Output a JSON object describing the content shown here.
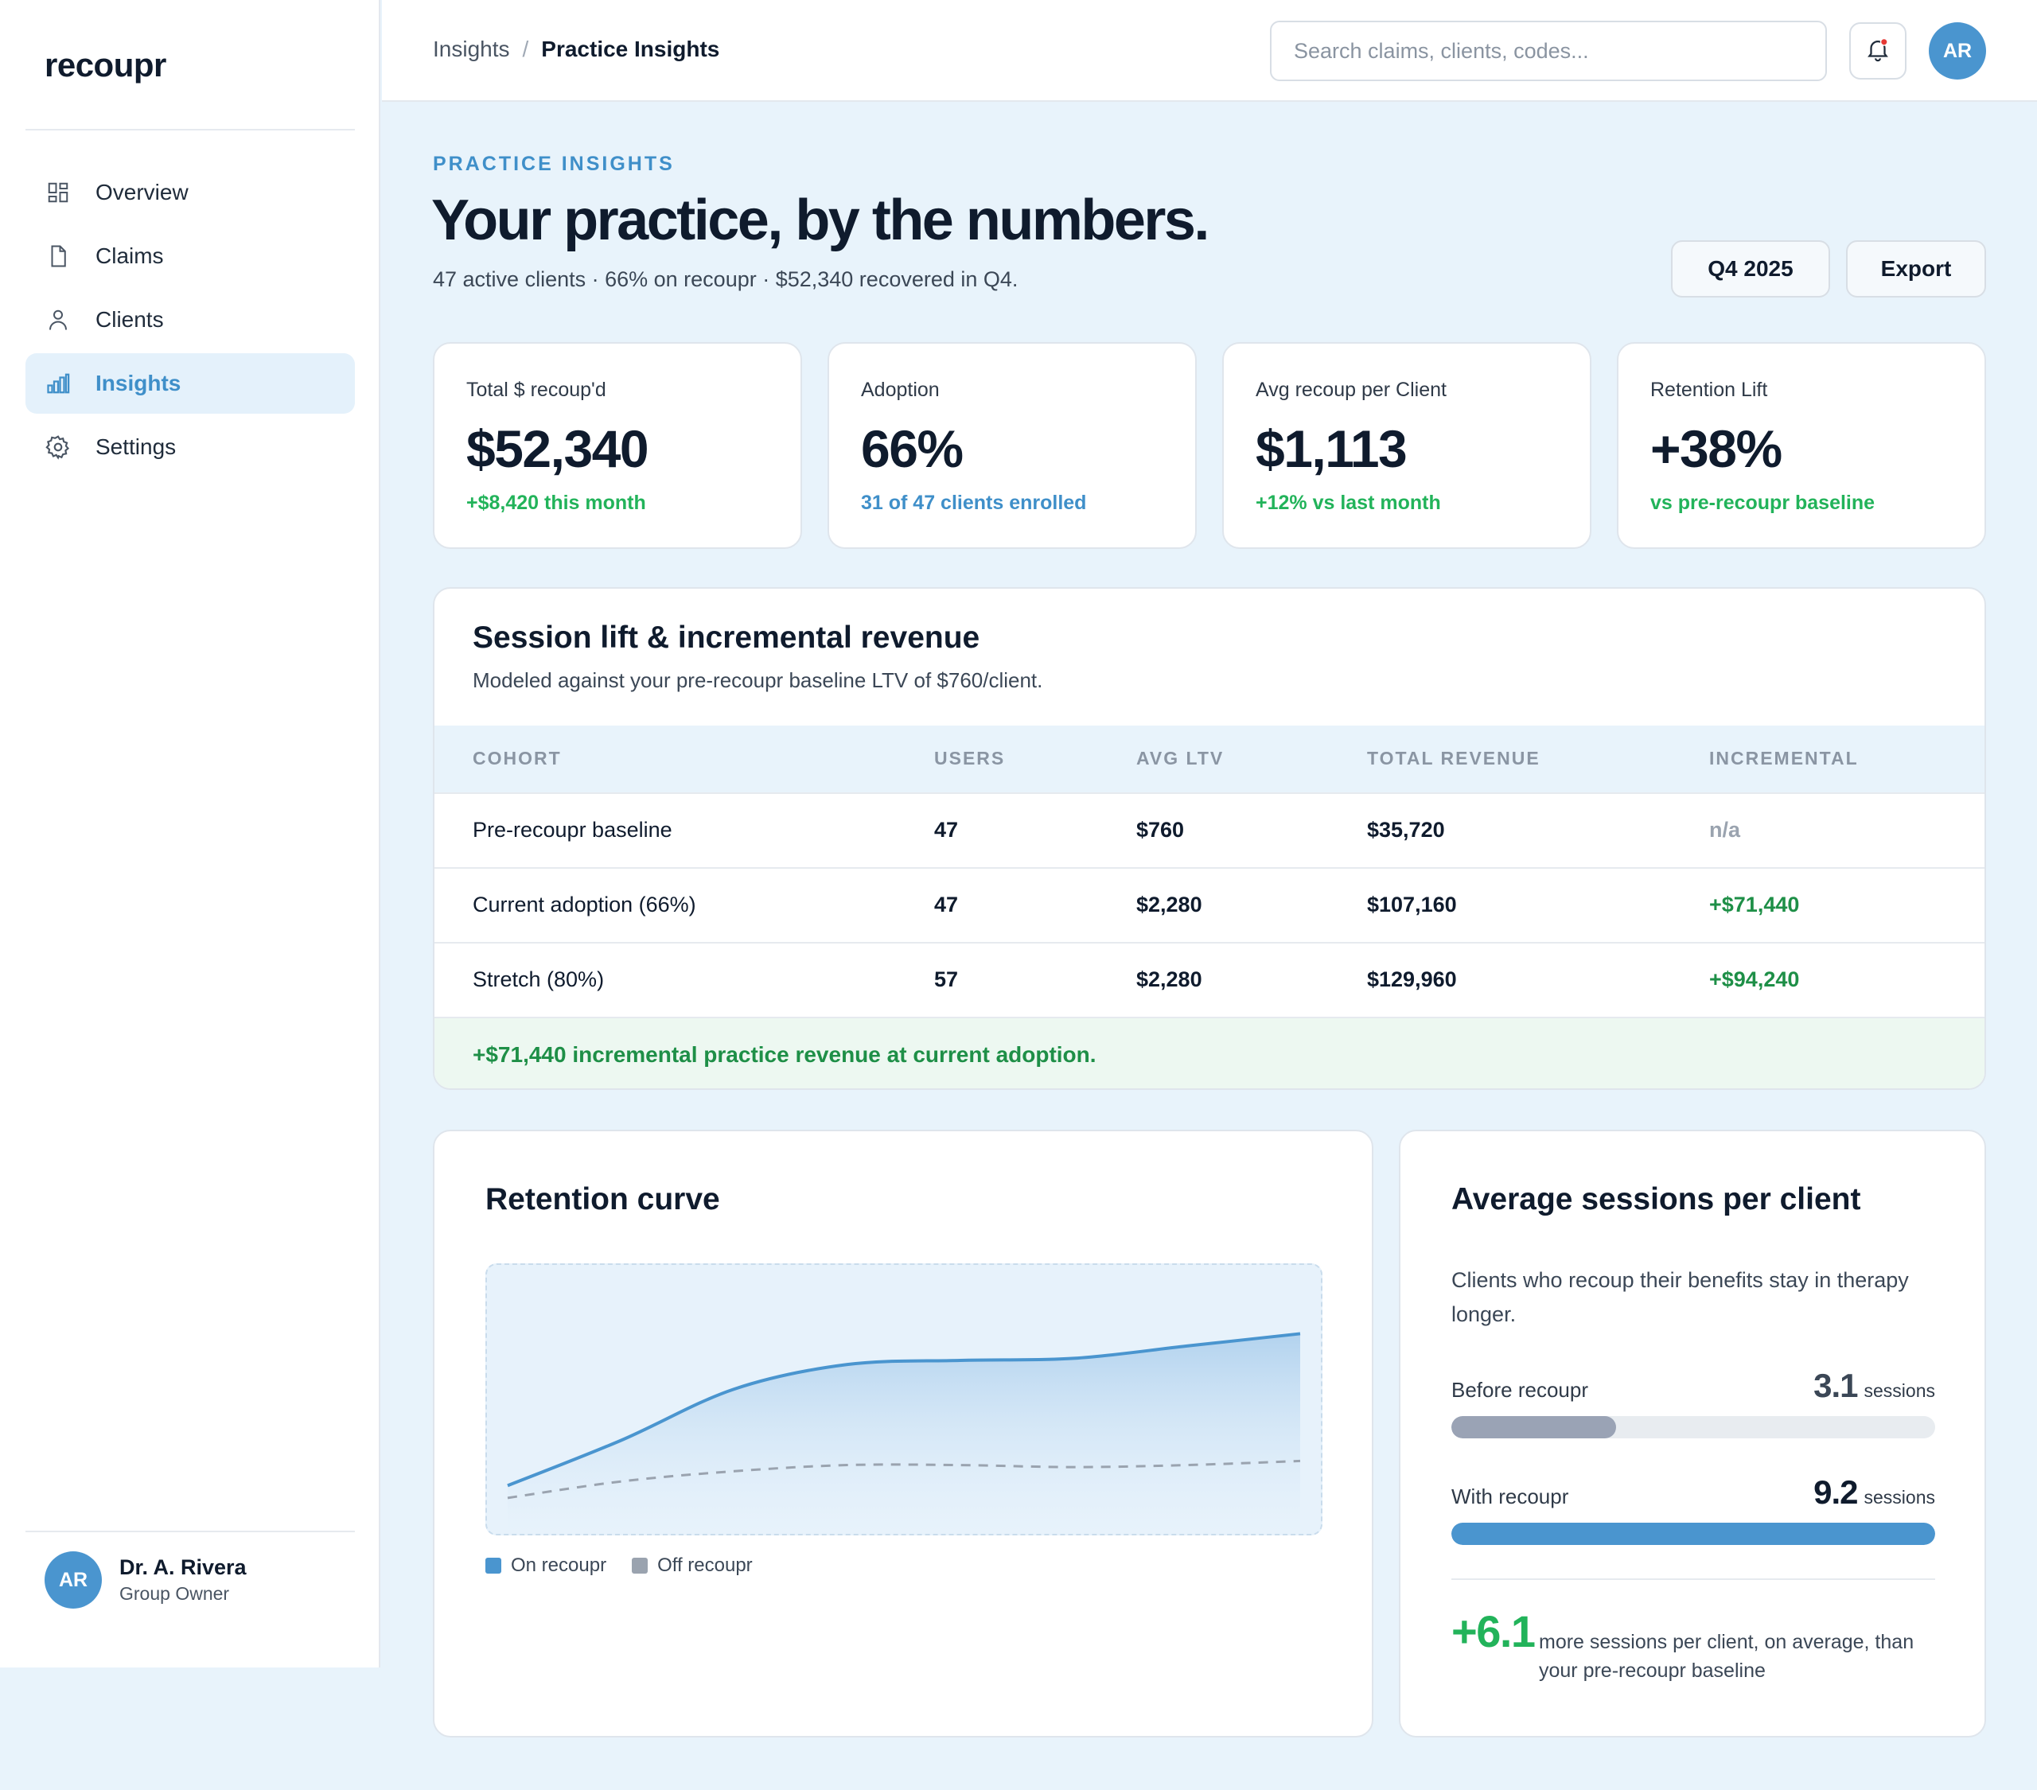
{
  "sidebar": {
    "brand": "recoupr",
    "items": [
      {
        "label": "Overview",
        "icon": "grid-icon",
        "active": false
      },
      {
        "label": "Claims",
        "icon": "document-icon",
        "active": false
      },
      {
        "label": "Clients",
        "icon": "user-icon",
        "active": false
      },
      {
        "label": "Insights",
        "icon": "bar-chart-icon",
        "active": true
      },
      {
        "label": "Settings",
        "icon": "gear-icon",
        "active": false
      }
    ],
    "user": {
      "initials": "AR",
      "name": "Dr. A. Rivera",
      "role": "Group Owner"
    }
  },
  "topbar": {
    "breadcrumb": [
      "Insights",
      "Practice Insights"
    ],
    "breadcrumb_sep": "/",
    "search_placeholder": "Search claims, clients, codes...",
    "avatar_initials": "AR"
  },
  "header": {
    "eyebrow": "PRACTICE INSIGHTS",
    "title": "Your practice, by the numbers.",
    "subtitle": "47 active clients · 66% on recoupr · $52,340 recovered in Q4.",
    "period_button": "Q4 2025",
    "export_button": "Export"
  },
  "kpis": [
    {
      "label": "Total $ recoup'd",
      "value": "$52,340",
      "note": "+$8,420 this month",
      "note_color": "#22b35a"
    },
    {
      "label": "Adoption",
      "value": "66%",
      "note": "31 of 47 clients enrolled",
      "note_color": "#3f8fc9"
    },
    {
      "label": "Avg recoup per Client",
      "value": "$1,113",
      "note": "+12% vs last month",
      "note_color": "#22b35a"
    },
    {
      "label": "Retention Lift",
      "value": "+38%",
      "note": "vs pre-recoupr baseline",
      "note_color": "#22b35a"
    }
  ],
  "lift": {
    "title": "Session lift & incremental revenue",
    "description": "Modeled against your pre-recoupr baseline LTV of $760/client.",
    "columns": [
      "COHORT",
      "USERS",
      "AVG LTV",
      "TOTAL REVENUE",
      "INCREMENTAL"
    ],
    "rows": [
      [
        "Pre-recoupr baseline",
        "47",
        "$760",
        "$35,720",
        "n/a"
      ],
      [
        "Current adoption (66%)",
        "47",
        "$2,280",
        "$107,160",
        "+$71,440"
      ],
      [
        "Stretch (80%)",
        "57",
        "$2,280",
        "$129,960",
        "+$94,240"
      ]
    ],
    "footer": "+$71,440 incremental practice revenue at current adoption."
  },
  "retention": {
    "title": "Retention curve",
    "legend": [
      {
        "label": "On recoupr",
        "color": "#4a95cf"
      },
      {
        "label": "Off recoupr",
        "color": "#9aa3af"
      }
    ],
    "chart_data": {
      "type": "area",
      "x": [
        0,
        1,
        2,
        3,
        4,
        5,
        6,
        7
      ],
      "series": [
        {
          "name": "On recoupr",
          "values": [
            0.08,
            0.3,
            0.55,
            0.67,
            0.69,
            0.7,
            0.76,
            0.82
          ],
          "color": "#4a95cf"
        },
        {
          "name": "Off recoupr",
          "values": [
            0.02,
            0.1,
            0.15,
            0.18,
            0.18,
            0.17,
            0.18,
            0.2
          ],
          "color": "#9aa3af"
        }
      ],
      "ylim": [
        0,
        1
      ]
    }
  },
  "sessions": {
    "title": "Average sessions per client",
    "description": "Clients who recoup their benefits stay in therapy longer.",
    "bars": [
      {
        "label": "Before recoupr",
        "value": "3.1",
        "unit": "sessions",
        "fraction": 0.34,
        "color": "#9aa3b5",
        "value_color": "#3b4756"
      },
      {
        "label": "With recoupr",
        "value": "9.2",
        "unit": "sessions",
        "fraction": 1.0,
        "color": "#4a95cf",
        "value_color": "#0f1b2d"
      }
    ],
    "delta": "+6.1",
    "delta_text": "more sessions per client, on average, than your pre-recoupr baseline"
  }
}
